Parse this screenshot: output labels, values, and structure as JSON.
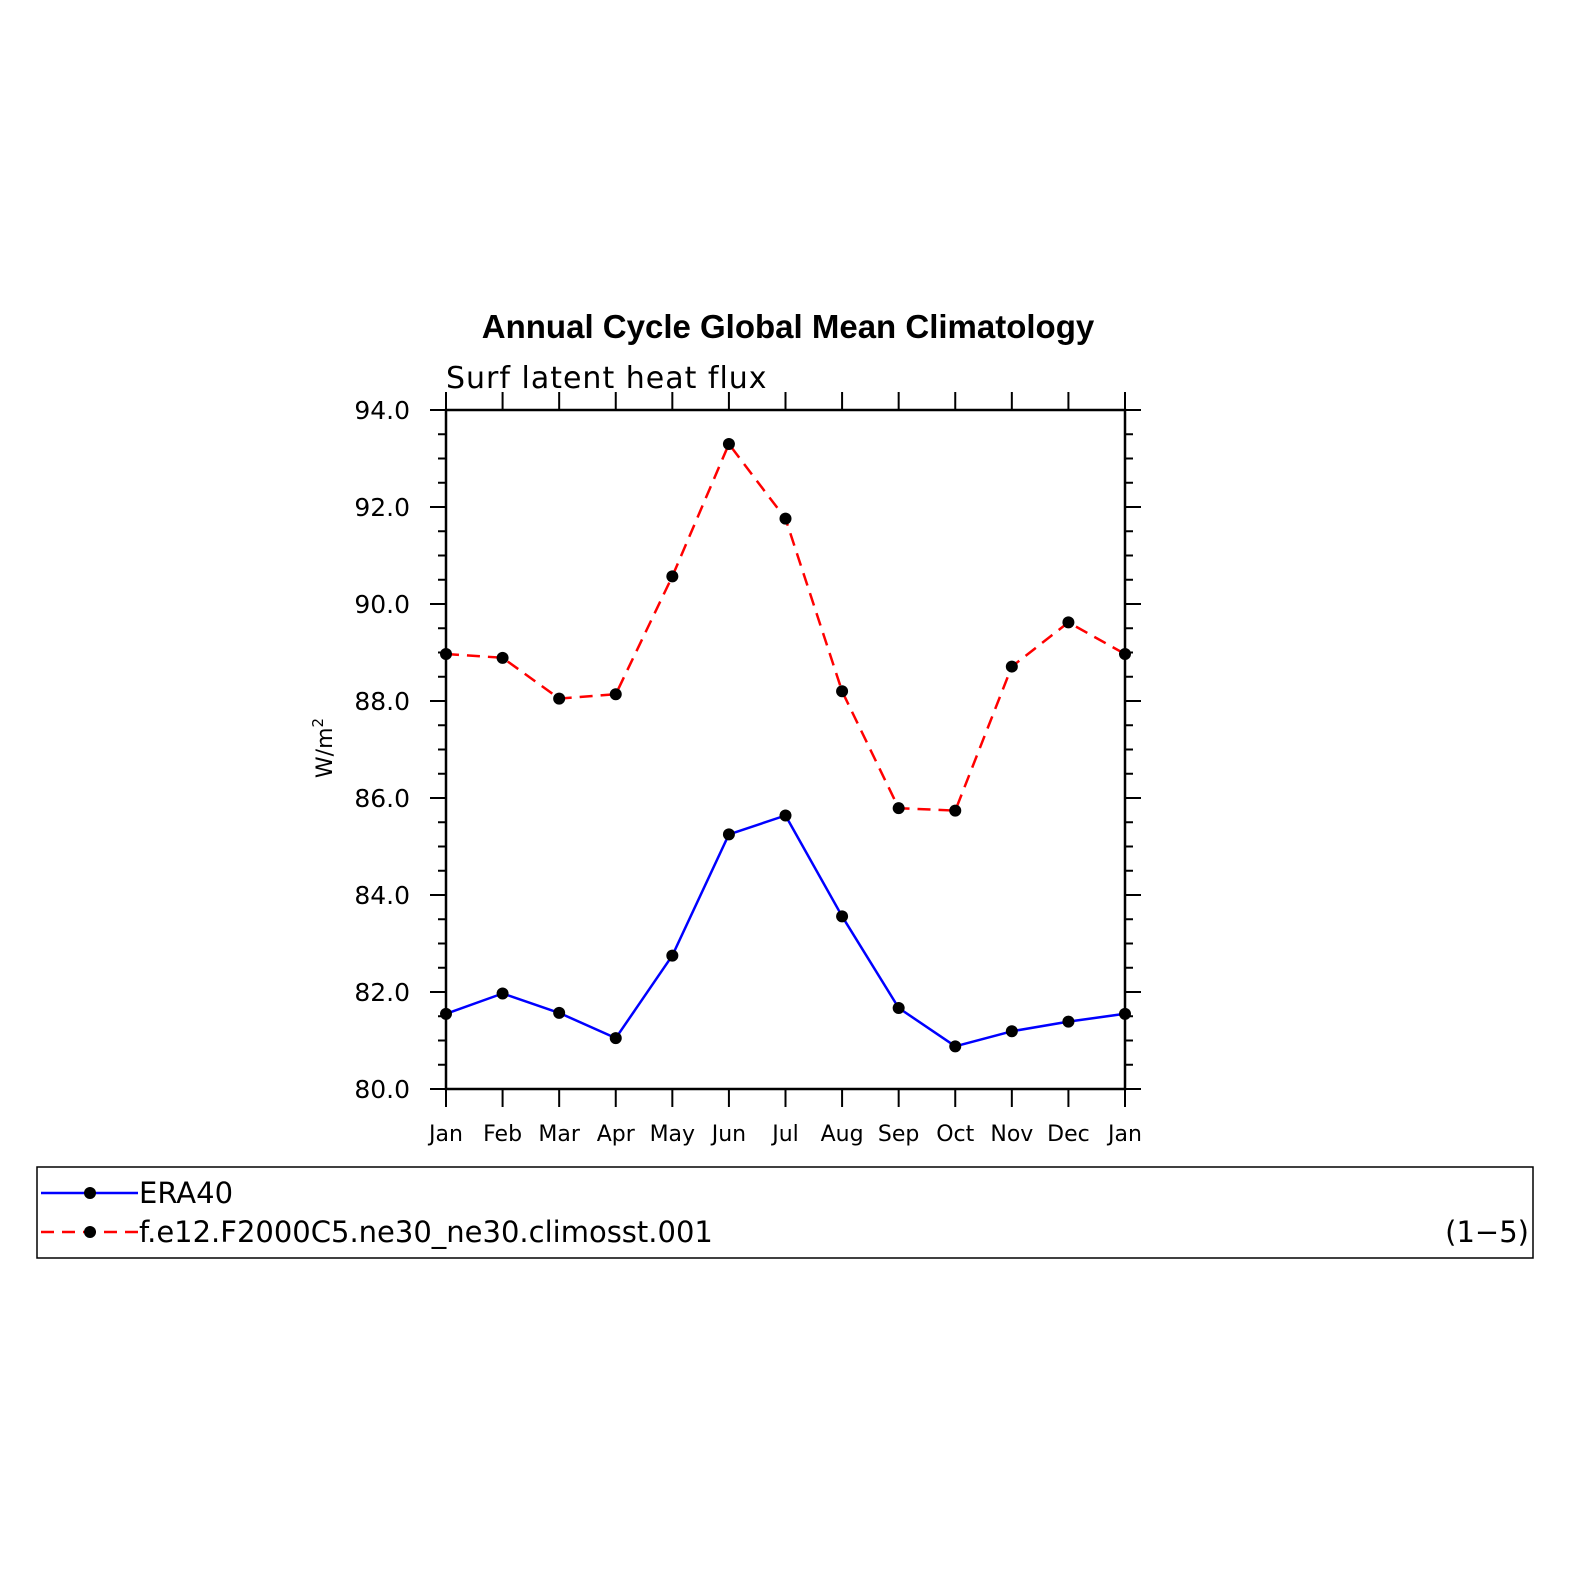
{
  "chart_data": {
    "type": "line",
    "title": "Annual Cycle Global Mean Climatology",
    "subtitle": "Surf latent heat flux",
    "ylabel": "W/m",
    "ylabel_superscript": "2",
    "categories": [
      "Jan",
      "Feb",
      "Mar",
      "Apr",
      "May",
      "Jun",
      "Jul",
      "Aug",
      "Sep",
      "Oct",
      "Nov",
      "Dec",
      "Jan"
    ],
    "ylim": [
      80.0,
      94.0
    ],
    "y_ticks": [
      "80.0",
      "82.0",
      "84.0",
      "86.0",
      "88.0",
      "90.0",
      "92.0",
      "94.0"
    ],
    "y_tick_values": [
      80,
      82,
      84,
      86,
      88,
      90,
      92,
      94
    ],
    "series": [
      {
        "name": "ERA40",
        "color": "#0000ff",
        "dash": "solid",
        "values": [
          81.55,
          81.97,
          81.57,
          81.05,
          82.75,
          85.25,
          85.64,
          83.56,
          81.67,
          80.88,
          81.19,
          81.39,
          81.55
        ]
      },
      {
        "name": "f.e12.F2000C5.ne30_ne30.climosst.001",
        "color": "#ff0000",
        "dash": "dashed",
        "values": [
          88.97,
          88.89,
          88.05,
          88.14,
          90.57,
          93.3,
          91.76,
          88.2,
          85.79,
          85.74,
          88.71,
          89.62,
          88.97
        ]
      }
    ],
    "legend_position": "bottom",
    "panel_label": "(1−5)",
    "grid": false
  }
}
